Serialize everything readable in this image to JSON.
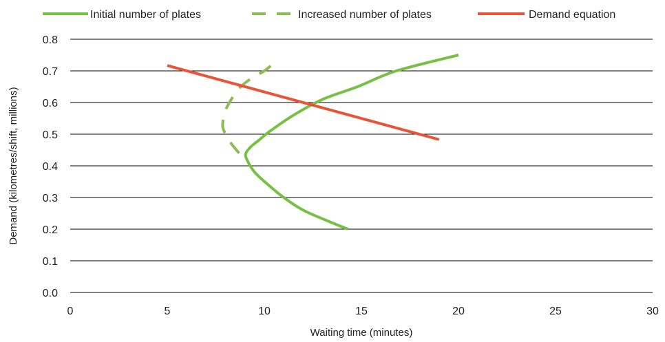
{
  "chart_data": {
    "type": "line",
    "title": "",
    "xlabel": "Waiting time (minutes)",
    "ylabel": "Demand (kilometres/shift, millions)",
    "xlim": [
      0,
      30
    ],
    "ylim": [
      0,
      0.8
    ],
    "x_ticks": [
      "0",
      "5",
      "10",
      "15",
      "20",
      "25",
      "30"
    ],
    "y_ticks": [
      "0.0",
      "0.1",
      "0.2",
      "0.3",
      "0.4",
      "0.5",
      "0.6",
      "0.7",
      "0.8"
    ],
    "grid": "horizontal",
    "legend_position": "top",
    "series": [
      {
        "name": "Initial number of plates",
        "color": "#76c043",
        "style": "solid",
        "points": [
          [
            14.3,
            0.2
          ],
          [
            13.3,
            0.225
          ],
          [
            12.0,
            0.26
          ],
          [
            11.0,
            0.3
          ],
          [
            10.2,
            0.34
          ],
          [
            9.5,
            0.38
          ],
          [
            9.1,
            0.42
          ],
          [
            9.05,
            0.44
          ],
          [
            9.3,
            0.46
          ],
          [
            9.7,
            0.48
          ],
          [
            10.3,
            0.51
          ],
          [
            11.5,
            0.56
          ],
          [
            13.0,
            0.61
          ],
          [
            14.8,
            0.65
          ],
          [
            16.8,
            0.7
          ],
          [
            20.0,
            0.75
          ]
        ]
      },
      {
        "name": "Increased number of plates",
        "color": "#8dbb55",
        "style": "dashed",
        "points": [
          [
            8.7,
            0.44
          ],
          [
            8.3,
            0.47
          ],
          [
            8.0,
            0.5
          ],
          [
            7.85,
            0.53
          ],
          [
            8.0,
            0.575
          ],
          [
            8.3,
            0.61
          ],
          [
            8.7,
            0.645
          ],
          [
            9.3,
            0.675
          ],
          [
            10.0,
            0.7
          ],
          [
            10.4,
            0.72
          ]
        ]
      },
      {
        "name": "Demand equation",
        "color": "#e8533a",
        "style": "solid",
        "points": [
          [
            5.0,
            0.717
          ],
          [
            19.0,
            0.483
          ]
        ]
      }
    ]
  }
}
